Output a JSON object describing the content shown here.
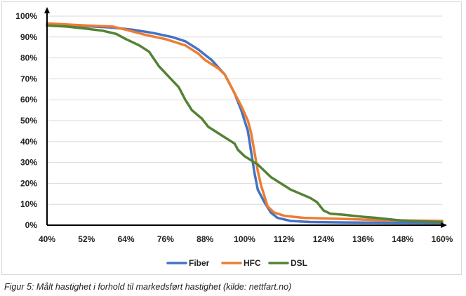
{
  "caption": "Figur 5: Målt hastighet i forhold til markedsført hastighet (kilde: nettfart.no)",
  "chart_data": {
    "type": "line",
    "title": "",
    "xlabel": "",
    "ylabel": "",
    "xlim": [
      40,
      160
    ],
    "ylim": [
      0,
      100
    ],
    "x_ticks": [
      40,
      52,
      64,
      76,
      88,
      100,
      112,
      124,
      136,
      148,
      160
    ],
    "x_tick_labels": [
      "40%",
      "52%",
      "64%",
      "76%",
      "88%",
      "100%",
      "112%",
      "124%",
      "136%",
      "148%",
      "160%"
    ],
    "y_ticks": [
      0,
      10,
      20,
      30,
      40,
      50,
      60,
      70,
      80,
      90,
      100
    ],
    "y_tick_labels": [
      "0%",
      "10%",
      "20%",
      "30%",
      "40%",
      "50%",
      "60%",
      "70%",
      "80%",
      "90%",
      "100%"
    ],
    "grid": "horizontal",
    "legend_position": "bottom",
    "series": [
      {
        "name": "Fiber",
        "color": "#4472C4",
        "points": [
          [
            40,
            96
          ],
          [
            52,
            95.2
          ],
          [
            60,
            94.5
          ],
          [
            66,
            93.5
          ],
          [
            72,
            92
          ],
          [
            78,
            90
          ],
          [
            82,
            88
          ],
          [
            86,
            84
          ],
          [
            90,
            79
          ],
          [
            94,
            72
          ],
          [
            97,
            63
          ],
          [
            99,
            55
          ],
          [
            101,
            45
          ],
          [
            102,
            35
          ],
          [
            103,
            25
          ],
          [
            104,
            17
          ],
          [
            106,
            11
          ],
          [
            108,
            6
          ],
          [
            110,
            3.5
          ],
          [
            114,
            2
          ],
          [
            120,
            1.5
          ],
          [
            130,
            1.3
          ],
          [
            140,
            1.2
          ],
          [
            150,
            1.1
          ],
          [
            160,
            1
          ]
        ]
      },
      {
        "name": "HFC",
        "color": "#ED7D31",
        "points": [
          [
            40,
            96.5
          ],
          [
            52,
            95.5
          ],
          [
            60,
            95
          ],
          [
            64,
            93.5
          ],
          [
            70,
            91
          ],
          [
            76,
            89
          ],
          [
            82,
            86
          ],
          [
            86,
            82
          ],
          [
            88,
            79
          ],
          [
            92,
            75
          ],
          [
            94,
            72
          ],
          [
            97,
            63
          ],
          [
            99,
            57
          ],
          [
            101,
            50
          ],
          [
            102,
            44
          ],
          [
            103,
            35
          ],
          [
            104,
            26
          ],
          [
            105,
            19
          ],
          [
            106,
            14
          ],
          [
            107,
            9
          ],
          [
            109,
            6
          ],
          [
            112,
            4.5
          ],
          [
            118,
            3.5
          ],
          [
            130,
            3
          ],
          [
            140,
            2.5
          ],
          [
            150,
            2.2
          ],
          [
            160,
            2
          ]
        ]
      },
      {
        "name": "DSL",
        "color": "#548235",
        "points": [
          [
            40,
            95.5
          ],
          [
            46,
            95
          ],
          [
            52,
            94
          ],
          [
            57,
            93
          ],
          [
            61,
            91.5
          ],
          [
            64,
            89
          ],
          [
            68,
            86
          ],
          [
            71,
            83
          ],
          [
            74,
            76
          ],
          [
            77,
            71
          ],
          [
            80,
            66
          ],
          [
            82,
            60
          ],
          [
            84,
            55
          ],
          [
            87,
            51
          ],
          [
            89,
            47
          ],
          [
            92,
            44
          ],
          [
            95,
            41
          ],
          [
            97,
            39
          ],
          [
            98,
            36
          ],
          [
            100,
            33
          ],
          [
            102,
            31
          ],
          [
            104,
            29
          ],
          [
            106,
            26
          ],
          [
            108,
            23
          ],
          [
            111,
            20
          ],
          [
            114,
            17
          ],
          [
            117,
            15
          ],
          [
            120,
            13
          ],
          [
            122,
            11
          ],
          [
            123,
            9
          ],
          [
            124,
            7
          ],
          [
            126,
            5.5
          ],
          [
            130,
            5
          ],
          [
            133,
            4.5
          ],
          [
            136,
            4
          ],
          [
            140,
            3.5
          ],
          [
            143,
            3
          ],
          [
            146,
            2.5
          ],
          [
            150,
            2
          ],
          [
            155,
            1.7
          ],
          [
            160,
            1.5
          ]
        ]
      }
    ]
  }
}
